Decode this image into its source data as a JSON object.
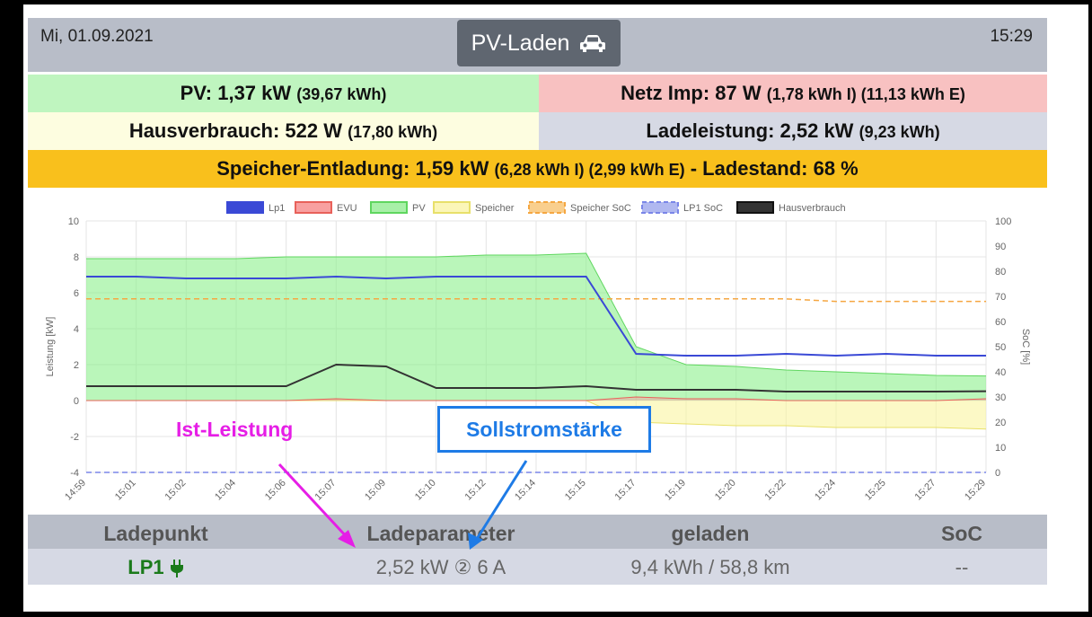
{
  "header": {
    "date": "Mi, 01.09.2021",
    "time": "15:29",
    "title": "PV-Laden",
    "icon": "car-icon"
  },
  "summary": {
    "pv_label": "PV: 1,37 kW",
    "pv_detail": "(39,67 kWh)",
    "grid_label": "Netz Imp: 87 W",
    "grid_detail": "(1,78 kWh I) (11,13 kWh E)",
    "house_label": "Hausverbrauch: 522 W",
    "house_detail": "(17,80 kWh)",
    "charge_label": "Ladeleistung: 2,52 kW",
    "charge_detail": "(9,23 kWh)",
    "storage_label": "Speicher-Entladung: 1,59 kW",
    "storage_detail": "(6,28 kWh I) (2,99 kWh E)",
    "storage_soc": "- Ladestand: 68 %"
  },
  "colors": {
    "pv": "#bff5bf",
    "grid": "#f8c1c1",
    "house": "#fdfde0",
    "charge": "#d6d9e4",
    "storage": "#f9c01c",
    "header": "#b8bdc8"
  },
  "chart_data": {
    "type": "line",
    "legend": [
      "Lp1",
      "EVU",
      "PV",
      "Speicher",
      "Speicher SoC",
      "LP1 SoC",
      "Hausverbrauch"
    ],
    "ylabel": "Leistung [kW]",
    "y2label": "SoC [%]",
    "ylim": [
      -4,
      10
    ],
    "y2lim": [
      0,
      100
    ],
    "yticks": [
      "10",
      "8",
      "6",
      "4",
      "2",
      "0",
      "-2",
      "-4"
    ],
    "y2ticks": [
      "100",
      "90",
      "80",
      "70",
      "60",
      "50",
      "40",
      "30",
      "20",
      "10",
      "0"
    ],
    "xticks": [
      "14:59",
      "15:01",
      "15:02",
      "15:04",
      "15:06",
      "15:07",
      "15:09",
      "15:10",
      "15:12",
      "15:14",
      "15:15",
      "15:17",
      "15:19",
      "15:20",
      "15:22",
      "15:24",
      "15:25",
      "15:27",
      "15:29"
    ],
    "series": [
      {
        "name": "Lp1",
        "values": [
          6.9,
          6.9,
          6.8,
          6.8,
          6.8,
          6.9,
          6.8,
          6.9,
          6.9,
          6.9,
          6.9,
          2.6,
          2.5,
          2.5,
          2.6,
          2.5,
          2.6,
          2.5,
          2.5
        ]
      },
      {
        "name": "EVU",
        "values": [
          0.0,
          0.0,
          0.0,
          0.0,
          0.0,
          0.1,
          0.0,
          0.0,
          0.0,
          0.0,
          0.0,
          0.2,
          0.1,
          0.1,
          0.0,
          0.0,
          0.0,
          0.0,
          0.1
        ]
      },
      {
        "name": "PV",
        "values": [
          7.9,
          7.9,
          7.9,
          7.9,
          8.0,
          8.0,
          8.0,
          8.0,
          8.1,
          8.1,
          8.2,
          3.0,
          2.0,
          1.9,
          1.7,
          1.6,
          1.5,
          1.4,
          1.37
        ]
      },
      {
        "name": "Speicher",
        "values": [
          0.0,
          0.0,
          0.0,
          0.0,
          0.0,
          0.0,
          0.0,
          0.0,
          0.0,
          0.0,
          0.0,
          -1.2,
          -1.3,
          -1.4,
          -1.4,
          -1.5,
          -1.5,
          -1.5,
          -1.59
        ]
      },
      {
        "name": "Speicher SoC",
        "values": [
          69,
          69,
          69,
          69,
          69,
          69,
          69,
          69,
          69,
          69,
          69,
          69,
          69,
          69,
          69,
          68,
          68,
          68,
          68
        ]
      },
      {
        "name": "LP1 SoC",
        "values": [
          0,
          0,
          0,
          0,
          0,
          0,
          0,
          0,
          0,
          0,
          0,
          0,
          0,
          0,
          0,
          0,
          0,
          0,
          0
        ]
      },
      {
        "name": "Hausverbrauch",
        "values": [
          0.8,
          0.8,
          0.8,
          0.8,
          0.8,
          2.0,
          1.9,
          0.7,
          0.7,
          0.7,
          0.8,
          0.6,
          0.6,
          0.6,
          0.5,
          0.5,
          0.5,
          0.5,
          0.52
        ]
      }
    ]
  },
  "table": {
    "headers": [
      "Ladepunkt",
      "Ladeparameter",
      "geladen",
      "SoC"
    ],
    "lp_name": "LP1",
    "params": "2,52 kW ② 6 A",
    "charged": "9,4 kWh / 58,8 km",
    "soc": "--"
  },
  "annotations": {
    "actual_power": "Ist-Leistung",
    "target_current": "Sollstromstärke"
  }
}
